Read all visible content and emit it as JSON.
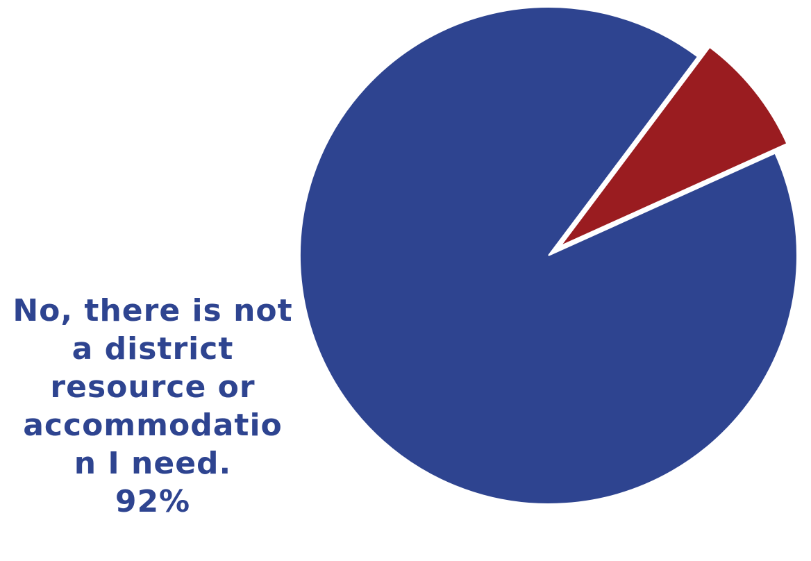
{
  "chart_data": {
    "type": "pie",
    "slices": [
      {
        "label_lines": [
          "No, there is not",
          "a district",
          "resource or",
          "accommodatio",
          "n I need."
        ],
        "percent_label": "92%",
        "value": 92,
        "color": "#2e4490"
      },
      {
        "value": 8,
        "color": "#9a1c20"
      }
    ]
  }
}
